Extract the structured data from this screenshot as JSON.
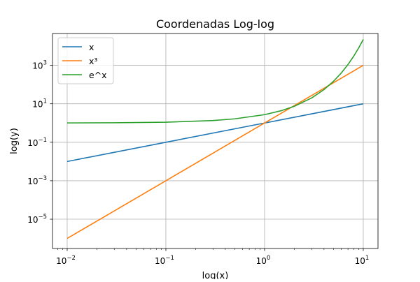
{
  "chart_data": {
    "type": "line",
    "title": "Coordenadas Log-log",
    "xlabel": "log(x)",
    "ylabel": "log(y)",
    "xscale": "log",
    "yscale": "log",
    "xlim": [
      0.0071,
      14.1
    ],
    "ylim": [
      3e-07,
      45000
    ],
    "grid": true,
    "legend_position": "top-left",
    "x_ticks": [
      {
        "value": 0.01,
        "base": "10",
        "exp": "−2"
      },
      {
        "value": 0.1,
        "base": "10",
        "exp": "−1"
      },
      {
        "value": 1,
        "base": "10",
        "exp": "0"
      },
      {
        "value": 10,
        "base": "10",
        "exp": "1"
      }
    ],
    "y_ticks": [
      {
        "value": 1e-05,
        "base": "10",
        "exp": "−5"
      },
      {
        "value": 0.001,
        "base": "10",
        "exp": "−3"
      },
      {
        "value": 0.1,
        "base": "10",
        "exp": "−1"
      },
      {
        "value": 10,
        "base": "10",
        "exp": "1"
      },
      {
        "value": 1000,
        "base": "10",
        "exp": "3"
      }
    ],
    "series": [
      {
        "name": "x",
        "color": "#1f77b4",
        "x": [
          0.01,
          0.1,
          1,
          10
        ],
        "y": [
          0.01,
          0.1,
          1,
          10
        ]
      },
      {
        "name": "x³",
        "color": "#ff7f0e",
        "x": [
          0.01,
          0.1,
          1,
          10
        ],
        "y": [
          1e-06,
          0.001,
          1,
          1000
        ]
      },
      {
        "name": "e^x",
        "color": "#2ca02c",
        "x": [
          0.01,
          0.03,
          0.1,
          0.3,
          0.5,
          1,
          1.5,
          2,
          3,
          4,
          5,
          6,
          7,
          8,
          9,
          10
        ],
        "y": [
          1.01,
          1.03,
          1.105,
          1.35,
          1.65,
          2.72,
          4.48,
          7.39,
          20.1,
          54.6,
          148.4,
          403.4,
          1096.6,
          2981,
          8103,
          22026
        ]
      }
    ]
  }
}
